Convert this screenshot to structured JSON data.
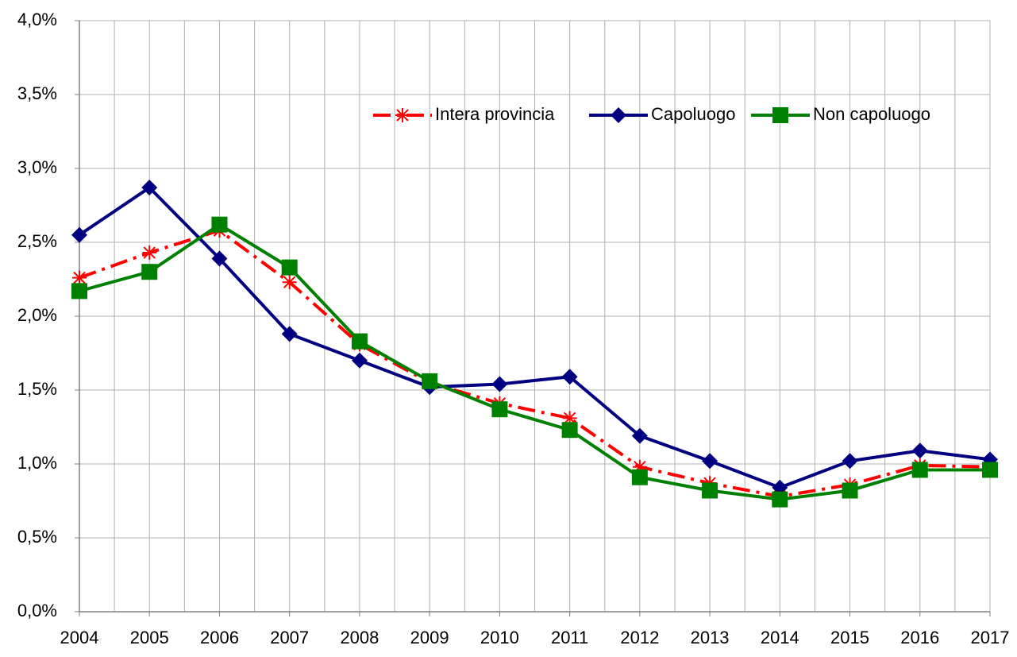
{
  "chart_data": {
    "type": "line",
    "categories": [
      "2004",
      "2005",
      "2006",
      "2007",
      "2008",
      "2009",
      "2010",
      "2011",
      "2012",
      "2013",
      "2014",
      "2015",
      "2016",
      "2017"
    ],
    "series": [
      {
        "name": "Intera provincia",
        "color": "#ff0000",
        "marker": "star",
        "dash": "dash-dot",
        "values": [
          2.26,
          2.43,
          2.58,
          2.23,
          1.81,
          1.55,
          1.41,
          1.31,
          0.98,
          0.87,
          0.78,
          0.86,
          0.99,
          0.98
        ]
      },
      {
        "name": "Capoluogo",
        "color": "#000080",
        "marker": "diamond",
        "dash": "solid",
        "values": [
          2.55,
          2.87,
          2.39,
          1.88,
          1.7,
          1.52,
          1.54,
          1.59,
          1.19,
          1.02,
          0.84,
          1.02,
          1.09,
          1.03
        ]
      },
      {
        "name": "Non capoluogo",
        "color": "#008000",
        "marker": "square",
        "dash": "solid",
        "values": [
          2.17,
          2.3,
          2.62,
          2.33,
          1.83,
          1.56,
          1.37,
          1.23,
          0.91,
          0.82,
          0.76,
          0.82,
          0.96,
          0.96
        ]
      }
    ],
    "ylim": [
      0,
      4
    ],
    "yticks": [
      {
        "value": 0,
        "label": "0,0%"
      },
      {
        "value": 0.5,
        "label": "0,5%"
      },
      {
        "value": 1,
        "label": "1,0%"
      },
      {
        "value": 1.5,
        "label": "1,5%"
      },
      {
        "value": 2,
        "label": "2,0%"
      },
      {
        "value": 2.5,
        "label": "2,5%"
      },
      {
        "value": 3,
        "label": "3,0%"
      },
      {
        "value": 3.5,
        "label": "3,5%"
      },
      {
        "value": 4,
        "label": "4,0%"
      }
    ],
    "grid": true,
    "legend": "top-right"
  }
}
